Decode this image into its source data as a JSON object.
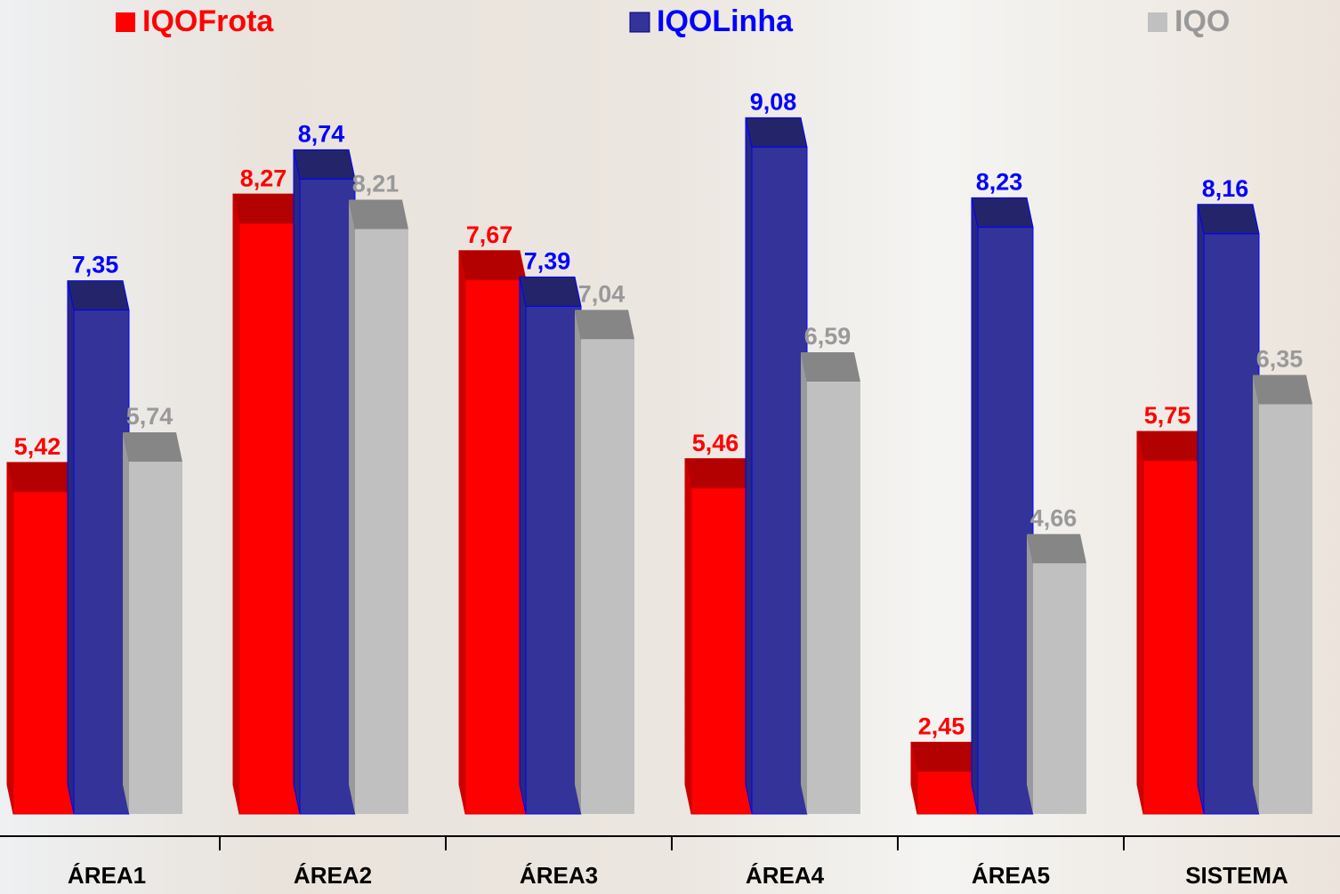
{
  "chart_data": {
    "type": "bar3d",
    "categories": [
      "ÁREA1",
      "ÁREA2",
      "ÁREA3",
      "ÁREA4",
      "ÁREA5",
      "SISTEMA"
    ],
    "series": [
      {
        "name": "IQOFrota",
        "color": "#ff0000",
        "label_color": "#ff0000",
        "values": [
          5.42,
          8.27,
          7.67,
          5.46,
          2.45,
          5.75
        ],
        "value_labels": [
          "5,42",
          "8,27",
          "7,67",
          "5,46",
          "2,45",
          "5,75"
        ]
      },
      {
        "name": "IQOLinha",
        "color": "#333399",
        "label_color": "#0000ff",
        "values": [
          7.35,
          8.74,
          7.39,
          9.08,
          8.23,
          8.16
        ],
        "value_labels": [
          "7,35",
          "8,74",
          "7,39",
          "9,08",
          "8,23",
          "8,16"
        ]
      },
      {
        "name": "IQO",
        "color": "#c0c0c0",
        "label_color": "#999999",
        "values": [
          5.74,
          8.21,
          7.04,
          6.59,
          4.66,
          6.35
        ],
        "value_labels": [
          "5,74",
          "8,21",
          "7,04",
          "6,59",
          "4,66",
          "6,35"
        ]
      }
    ],
    "ylim": [
      2,
      10
    ]
  }
}
